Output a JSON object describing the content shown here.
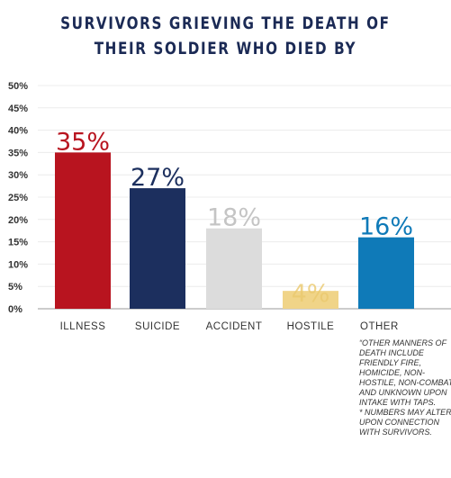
{
  "title": {
    "line1": "SURVIVORS GRIEVING THE DEATH OF",
    "line2": "THEIR SOLDIER WHO DIED BY"
  },
  "chart_data": {
    "type": "bar",
    "categories": [
      "ILLNESS",
      "SUICIDE",
      "ACCIDENT",
      "HOSTILE",
      "OTHER"
    ],
    "values": [
      35,
      27,
      18,
      4,
      16
    ],
    "data_labels": [
      "35%",
      "27%",
      "18%",
      "4%",
      "16%"
    ],
    "colors": [
      "#b8141f",
      "#1c2f5e",
      "#dcdcdc",
      "#f0d488",
      "#0f7ab8"
    ],
    "label_colors": [
      "#b8141f",
      "#1c2f5e",
      "#c4c4c4",
      "#ebc96e",
      "#0f7ab8"
    ],
    "yticks": [
      "0%",
      "5%",
      "10%",
      "15%",
      "20%",
      "25%",
      "30%",
      "35%",
      "40%",
      "45%",
      "50%"
    ],
    "ylim": [
      0,
      50
    ],
    "grid": true,
    "xlabel": "",
    "ylabel": ""
  },
  "footnote": "“Other manners of death include friendly fire, homicide, non-hostile, non-combat, and unknown upon intake with TAPS.\n* Numbers may alter upon connection with survivors."
}
